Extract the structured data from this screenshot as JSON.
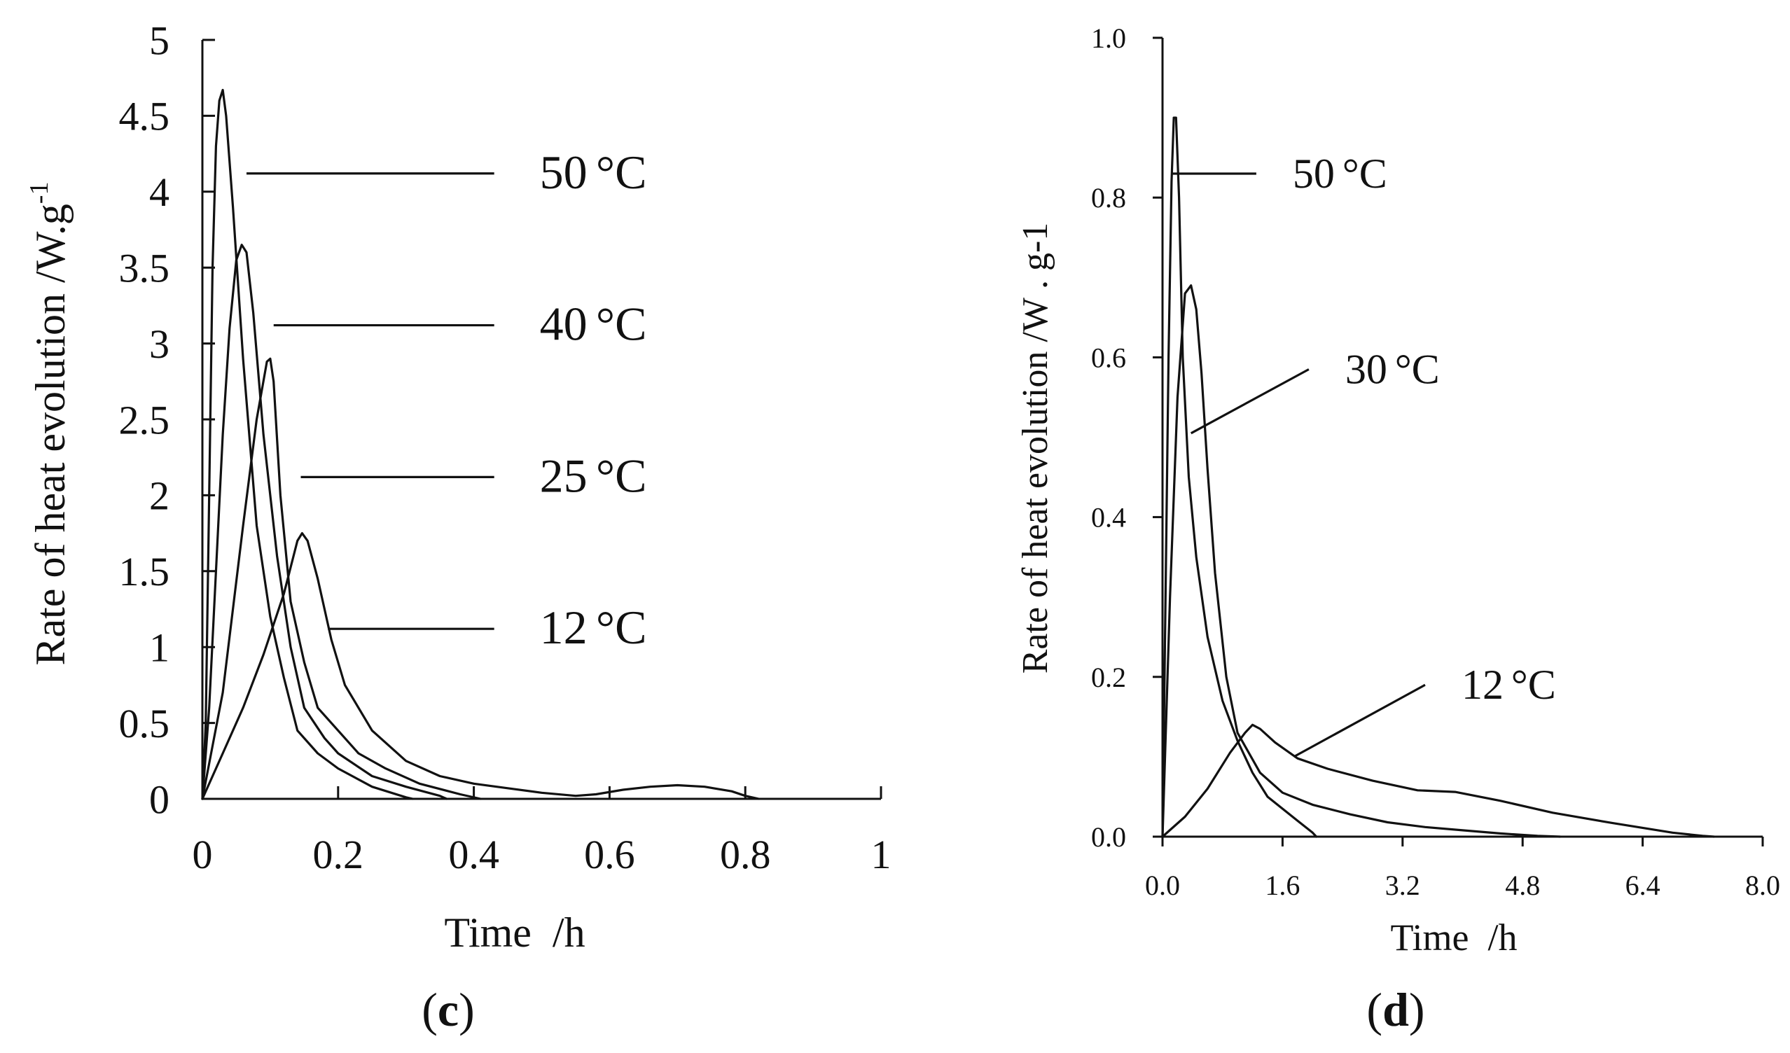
{
  "chart_data": [
    {
      "type": "line",
      "panel_label": "c",
      "title": "",
      "xlabel": "Time  /h",
      "ylabel": "Rate of heat evolution /W.g",
      "ylabel_superscript": "-1",
      "xlim": [
        0,
        1
      ],
      "ylim": [
        0,
        5
      ],
      "x_ticks": [
        0,
        0.2,
        0.4,
        0.6,
        0.8,
        1
      ],
      "x_tick_labels": [
        "0",
        "0.2",
        "0.4",
        "0.6",
        "0.8",
        "1"
      ],
      "y_ticks": [
        0,
        0.5,
        1,
        1.5,
        2,
        2.5,
        3,
        3.5,
        4,
        4.5,
        5
      ],
      "y_tick_labels": [
        "0",
        "0.5",
        "1",
        "1.5",
        "2",
        "2.5",
        "3",
        "3.5",
        "4",
        "4.5",
        "5"
      ],
      "grid": false,
      "series": [
        {
          "name": "50 °C",
          "label": "50",
          "unit": "°C",
          "x": [
            0,
            0.005,
            0.01,
            0.015,
            0.02,
            0.025,
            0.03,
            0.035,
            0.045,
            0.06,
            0.08,
            0.1,
            0.12,
            0.14,
            0.17,
            0.2,
            0.25,
            0.3,
            0.31
          ],
          "y": [
            0,
            0.5,
            2.0,
            3.5,
            4.3,
            4.6,
            4.67,
            4.5,
            3.9,
            2.9,
            1.8,
            1.2,
            0.8,
            0.45,
            0.3,
            0.2,
            0.08,
            0.01,
            0
          ],
          "leader_point": [
            0.065,
            4.12
          ],
          "leader_end": [
            0.43,
            4.12
          ]
        },
        {
          "name": "40 °C",
          "label": "40",
          "unit": "°C",
          "x": [
            0,
            0.01,
            0.02,
            0.03,
            0.04,
            0.05,
            0.058,
            0.065,
            0.075,
            0.09,
            0.11,
            0.13,
            0.15,
            0.18,
            0.2,
            0.25,
            0.3,
            0.35,
            0.36
          ],
          "y": [
            0,
            0.6,
            1.5,
            2.4,
            3.1,
            3.55,
            3.65,
            3.6,
            3.2,
            2.4,
            1.6,
            1.0,
            0.6,
            0.4,
            0.3,
            0.15,
            0.08,
            0.02,
            0
          ],
          "leader_point": [
            0.105,
            3.12
          ],
          "leader_end": [
            0.43,
            3.12
          ]
        },
        {
          "name": "25 °C",
          "label": "25",
          "unit": "°C",
          "x": [
            0,
            0.03,
            0.06,
            0.08,
            0.095,
            0.1,
            0.105,
            0.115,
            0.13,
            0.15,
            0.17,
            0.2,
            0.23,
            0.27,
            0.32,
            0.38,
            0.41
          ],
          "y": [
            0,
            0.7,
            1.8,
            2.5,
            2.88,
            2.9,
            2.75,
            2.0,
            1.3,
            0.9,
            0.6,
            0.45,
            0.3,
            0.2,
            0.1,
            0.03,
            0
          ],
          "leader_point": [
            0.145,
            2.12
          ],
          "leader_end": [
            0.43,
            2.12
          ]
        },
        {
          "name": "12 °C",
          "label": "12",
          "unit": "°C",
          "x": [
            0,
            0.03,
            0.06,
            0.09,
            0.12,
            0.14,
            0.147,
            0.155,
            0.17,
            0.19,
            0.21,
            0.25,
            0.3,
            0.35,
            0.4,
            0.45,
            0.5,
            0.55,
            0.58,
            0.62,
            0.66,
            0.7,
            0.74,
            0.78,
            0.8,
            0.82
          ],
          "y": [
            0,
            0.3,
            0.6,
            0.95,
            1.35,
            1.7,
            1.75,
            1.7,
            1.45,
            1.05,
            0.75,
            0.45,
            0.25,
            0.15,
            0.1,
            0.07,
            0.04,
            0.02,
            0.03,
            0.06,
            0.08,
            0.09,
            0.08,
            0.05,
            0.02,
            0
          ],
          "leader_point": [
            0.185,
            1.12
          ],
          "leader_end": [
            0.43,
            1.12
          ]
        }
      ]
    },
    {
      "type": "line",
      "panel_label": "d",
      "title": "",
      "xlabel": "Time  /h",
      "ylabel": "Rate of heat evolution /W . g-1",
      "xlim": [
        0,
        8
      ],
      "ylim": [
        0,
        1
      ],
      "x_ticks": [
        0,
        1.6,
        3.2,
        4.8,
        6.4,
        8
      ],
      "x_tick_labels": [
        "0.0",
        "1.6",
        "3.2",
        "4.8",
        "6.4",
        "8.0"
      ],
      "y_ticks": [
        0,
        0.2,
        0.4,
        0.6,
        0.8,
        1
      ],
      "y_tick_labels": [
        "0.0",
        "0.2",
        "0.4",
        "0.6",
        "0.8",
        "1.0"
      ],
      "grid": false,
      "series": [
        {
          "name": "50 °C",
          "label": "50",
          "unit": "°C",
          "x": [
            0,
            0.04,
            0.08,
            0.12,
            0.15,
            0.18,
            0.22,
            0.27,
            0.35,
            0.45,
            0.6,
            0.8,
            1.0,
            1.2,
            1.4,
            1.6,
            1.8,
            2.0,
            2.05
          ],
          "y": [
            0,
            0.3,
            0.6,
            0.82,
            0.9,
            0.9,
            0.8,
            0.6,
            0.45,
            0.35,
            0.25,
            0.17,
            0.12,
            0.08,
            0.05,
            0.035,
            0.02,
            0.005,
            0
          ],
          "leader_point": [
            0.13,
            0.83
          ],
          "leader_end": [
            1.25,
            0.83
          ]
        },
        {
          "name": "30 °C",
          "label": "30",
          "unit": "°C",
          "x": [
            0,
            0.1,
            0.2,
            0.3,
            0.38,
            0.45,
            0.52,
            0.6,
            0.7,
            0.85,
            1.0,
            1.3,
            1.6,
            2.0,
            2.5,
            3.0,
            3.5,
            4.0,
            4.5,
            5.0,
            5.3
          ],
          "y": [
            0,
            0.3,
            0.55,
            0.68,
            0.69,
            0.66,
            0.58,
            0.46,
            0.33,
            0.2,
            0.13,
            0.08,
            0.055,
            0.04,
            0.028,
            0.018,
            0.012,
            0.008,
            0.004,
            0.001,
            0
          ],
          "leader_point": [
            0.38,
            0.505
          ],
          "leader_end": [
            1.95,
            0.585
          ]
        },
        {
          "name": "12 °C",
          "label": "12",
          "unit": "°C",
          "x": [
            0,
            0.3,
            0.6,
            0.9,
            1.1,
            1.2,
            1.3,
            1.5,
            1.8,
            2.2,
            2.8,
            3.4,
            3.9,
            4.5,
            5.2,
            6.0,
            6.8,
            7.2,
            7.35
          ],
          "y": [
            0,
            0.025,
            0.06,
            0.105,
            0.13,
            0.14,
            0.135,
            0.118,
            0.098,
            0.085,
            0.07,
            0.058,
            0.056,
            0.045,
            0.03,
            0.017,
            0.005,
            0.001,
            0
          ],
          "leader_point": [
            1.75,
            0.1
          ],
          "leader_end": [
            3.5,
            0.19
          ]
        }
      ]
    }
  ]
}
